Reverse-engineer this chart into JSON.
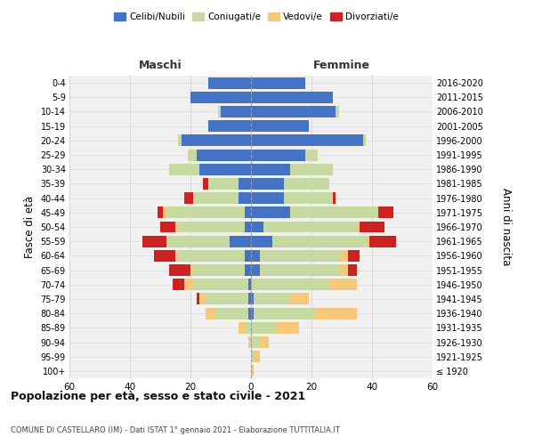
{
  "age_groups": [
    "100+",
    "95-99",
    "90-94",
    "85-89",
    "80-84",
    "75-79",
    "70-74",
    "65-69",
    "60-64",
    "55-59",
    "50-54",
    "45-49",
    "40-44",
    "35-39",
    "30-34",
    "25-29",
    "20-24",
    "15-19",
    "10-14",
    "5-9",
    "0-4"
  ],
  "birth_years": [
    "≤ 1920",
    "1921-1925",
    "1926-1930",
    "1931-1935",
    "1936-1940",
    "1941-1945",
    "1946-1950",
    "1951-1955",
    "1956-1960",
    "1961-1965",
    "1966-1970",
    "1971-1975",
    "1976-1980",
    "1981-1985",
    "1986-1990",
    "1991-1995",
    "1996-2000",
    "2001-2005",
    "2006-2010",
    "2011-2015",
    "2016-2020"
  ],
  "colors": {
    "celibi": "#4472c4",
    "coniugati": "#c5d9a0",
    "vedovi": "#f5c97a",
    "divorziati": "#cc2222"
  },
  "maschi": {
    "celibi": [
      0,
      0,
      0,
      0,
      1,
      1,
      1,
      2,
      2,
      7,
      2,
      2,
      4,
      4,
      17,
      18,
      23,
      14,
      10,
      20,
      14
    ],
    "coniugati": [
      0,
      0,
      0,
      2,
      11,
      14,
      18,
      17,
      22,
      21,
      22,
      26,
      15,
      10,
      10,
      3,
      1,
      0,
      1,
      0,
      0
    ],
    "vedovi": [
      0,
      0,
      1,
      2,
      3,
      2,
      3,
      1,
      1,
      0,
      1,
      1,
      0,
      0,
      0,
      0,
      0,
      0,
      0,
      0,
      0
    ],
    "divorziati": [
      0,
      0,
      0,
      0,
      0,
      1,
      4,
      7,
      7,
      8,
      5,
      2,
      3,
      2,
      0,
      0,
      0,
      0,
      0,
      0,
      0
    ]
  },
  "femmine": {
    "celibi": [
      0,
      0,
      0,
      0,
      1,
      1,
      0,
      3,
      3,
      7,
      4,
      13,
      11,
      11,
      13,
      18,
      37,
      19,
      28,
      27,
      18
    ],
    "coniugati": [
      0,
      1,
      3,
      8,
      20,
      12,
      26,
      26,
      26,
      31,
      31,
      29,
      16,
      15,
      14,
      4,
      1,
      0,
      1,
      0,
      0
    ],
    "vedovi": [
      1,
      2,
      3,
      8,
      14,
      6,
      9,
      3,
      3,
      1,
      1,
      0,
      0,
      0,
      0,
      0,
      0,
      0,
      0,
      0,
      0
    ],
    "divorziati": [
      0,
      0,
      0,
      0,
      0,
      0,
      0,
      3,
      4,
      9,
      8,
      5,
      1,
      0,
      0,
      0,
      0,
      0,
      0,
      0,
      0
    ]
  },
  "xlim": 60,
  "title": "Popolazione per età, sesso e stato civile - 2021",
  "subtitle": "COMUNE DI CASTELLARO (IM) - Dati ISTAT 1° gennaio 2021 - Elaborazione TUTTITALIA.IT",
  "ylabel_left": "Fasce di età",
  "ylabel_right": "Anni di nascita",
  "label_maschi": "Maschi",
  "label_femmine": "Femmine",
  "legend_labels": [
    "Celibi/Nubili",
    "Coniugati/e",
    "Vedovi/e",
    "Divorziati/e"
  ],
  "bg_color": "#f0f0f0"
}
